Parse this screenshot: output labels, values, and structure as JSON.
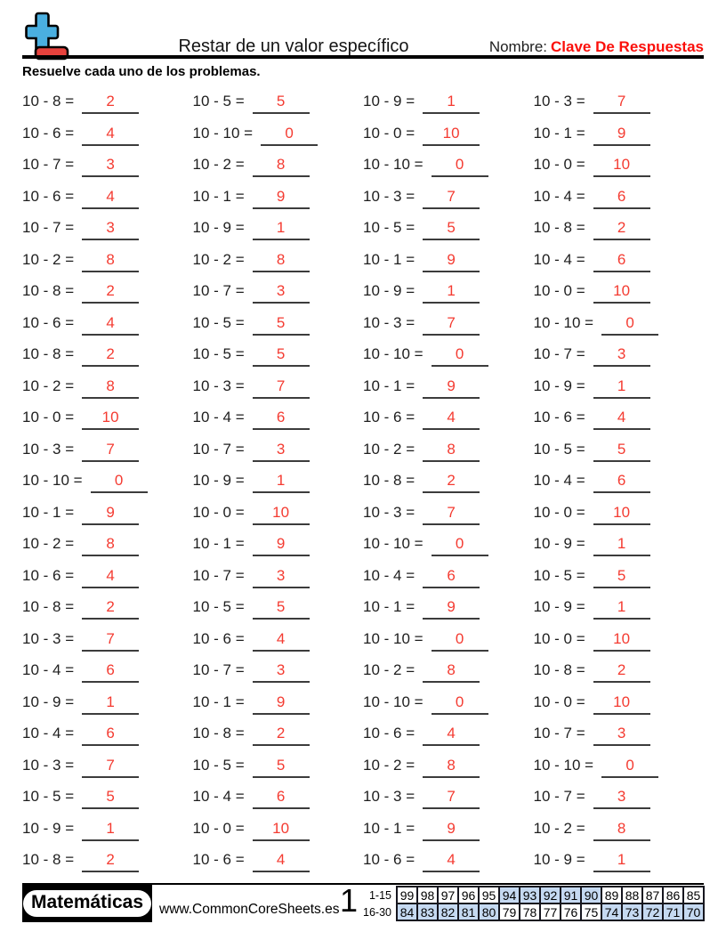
{
  "colors": {
    "answer_red": "#f43b31",
    "header_red": "#fb0f0a",
    "table_shade": "#c5d9f1",
    "logo_plus_blue": "#4aafe0",
    "logo_minus_red": "#e7423d"
  },
  "header": {
    "title": "Restar de un valor específico",
    "name_label": "Nombre:",
    "name_value": "Clave De Respuestas",
    "instruction": "Resuelve cada uno de los problemas."
  },
  "problems": {
    "columns": [
      [
        {
          "q": "10 - 8 =",
          "a": "2"
        },
        {
          "q": "10 - 6 =",
          "a": "4"
        },
        {
          "q": "10 - 7 =",
          "a": "3"
        },
        {
          "q": "10 - 6 =",
          "a": "4"
        },
        {
          "q": "10 - 7 =",
          "a": "3"
        },
        {
          "q": "10 - 2 =",
          "a": "8"
        },
        {
          "q": "10 - 8 =",
          "a": "2"
        },
        {
          "q": "10 - 6 =",
          "a": "4"
        },
        {
          "q": "10 - 8 =",
          "a": "2"
        },
        {
          "q": "10 - 2 =",
          "a": "8"
        },
        {
          "q": "10 - 0 =",
          "a": "10"
        },
        {
          "q": "10 - 3 =",
          "a": "7"
        },
        {
          "q": "10 - 10 =",
          "a": "0"
        },
        {
          "q": "10 - 1 =",
          "a": "9"
        },
        {
          "q": "10 - 2 =",
          "a": "8"
        },
        {
          "q": "10 - 6 =",
          "a": "4"
        },
        {
          "q": "10 - 8 =",
          "a": "2"
        },
        {
          "q": "10 - 3 =",
          "a": "7"
        },
        {
          "q": "10 - 4 =",
          "a": "6"
        },
        {
          "q": "10 - 9 =",
          "a": "1"
        },
        {
          "q": "10 - 4 =",
          "a": "6"
        },
        {
          "q": "10 - 3 =",
          "a": "7"
        },
        {
          "q": "10 - 5 =",
          "a": "5"
        },
        {
          "q": "10 - 9 =",
          "a": "1"
        },
        {
          "q": "10 - 8 =",
          "a": "2"
        }
      ],
      [
        {
          "q": "10 - 5 =",
          "a": "5"
        },
        {
          "q": "10 - 10 =",
          "a": "0"
        },
        {
          "q": "10 - 2 =",
          "a": "8"
        },
        {
          "q": "10 - 1 =",
          "a": "9"
        },
        {
          "q": "10 - 9 =",
          "a": "1"
        },
        {
          "q": "10 - 2 =",
          "a": "8"
        },
        {
          "q": "10 - 7 =",
          "a": "3"
        },
        {
          "q": "10 - 5 =",
          "a": "5"
        },
        {
          "q": "10 - 5 =",
          "a": "5"
        },
        {
          "q": "10 - 3 =",
          "a": "7"
        },
        {
          "q": "10 - 4 =",
          "a": "6"
        },
        {
          "q": "10 - 7 =",
          "a": "3"
        },
        {
          "q": "10 - 9 =",
          "a": "1"
        },
        {
          "q": "10 - 0 =",
          "a": "10"
        },
        {
          "q": "10 - 1 =",
          "a": "9"
        },
        {
          "q": "10 - 7 =",
          "a": "3"
        },
        {
          "q": "10 - 5 =",
          "a": "5"
        },
        {
          "q": "10 - 6 =",
          "a": "4"
        },
        {
          "q": "10 - 7 =",
          "a": "3"
        },
        {
          "q": "10 - 1 =",
          "a": "9"
        },
        {
          "q": "10 - 8 =",
          "a": "2"
        },
        {
          "q": "10 - 5 =",
          "a": "5"
        },
        {
          "q": "10 - 4 =",
          "a": "6"
        },
        {
          "q": "10 - 0 =",
          "a": "10"
        },
        {
          "q": "10 - 6 =",
          "a": "4"
        }
      ],
      [
        {
          "q": "10 - 9 =",
          "a": "1"
        },
        {
          "q": "10 - 0 =",
          "a": "10"
        },
        {
          "q": "10 - 10 =",
          "a": "0"
        },
        {
          "q": "10 - 3 =",
          "a": "7"
        },
        {
          "q": "10 - 5 =",
          "a": "5"
        },
        {
          "q": "10 - 1 =",
          "a": "9"
        },
        {
          "q": "10 - 9 =",
          "a": "1"
        },
        {
          "q": "10 - 3 =",
          "a": "7"
        },
        {
          "q": "10 - 10 =",
          "a": "0"
        },
        {
          "q": "10 - 1 =",
          "a": "9"
        },
        {
          "q": "10 - 6 =",
          "a": "4"
        },
        {
          "q": "10 - 2 =",
          "a": "8"
        },
        {
          "q": "10 - 8 =",
          "a": "2"
        },
        {
          "q": "10 - 3 =",
          "a": "7"
        },
        {
          "q": "10 - 10 =",
          "a": "0"
        },
        {
          "q": "10 - 4 =",
          "a": "6"
        },
        {
          "q": "10 - 1 =",
          "a": "9"
        },
        {
          "q": "10 - 10 =",
          "a": "0"
        },
        {
          "q": "10 - 2 =",
          "a": "8"
        },
        {
          "q": "10 - 10 =",
          "a": "0"
        },
        {
          "q": "10 - 6 =",
          "a": "4"
        },
        {
          "q": "10 - 2 =",
          "a": "8"
        },
        {
          "q": "10 - 3 =",
          "a": "7"
        },
        {
          "q": "10 - 1 =",
          "a": "9"
        },
        {
          "q": "10 - 6 =",
          "a": "4"
        }
      ],
      [
        {
          "q": "10 - 3 =",
          "a": "7"
        },
        {
          "q": "10 - 1 =",
          "a": "9"
        },
        {
          "q": "10 - 0 =",
          "a": "10"
        },
        {
          "q": "10 - 4 =",
          "a": "6"
        },
        {
          "q": "10 - 8 =",
          "a": "2"
        },
        {
          "q": "10 - 4 =",
          "a": "6"
        },
        {
          "q": "10 - 0 =",
          "a": "10"
        },
        {
          "q": "10 - 10 =",
          "a": "0"
        },
        {
          "q": "10 - 7 =",
          "a": "3"
        },
        {
          "q": "10 - 9 =",
          "a": "1"
        },
        {
          "q": "10 - 6 =",
          "a": "4"
        },
        {
          "q": "10 - 5 =",
          "a": "5"
        },
        {
          "q": "10 - 4 =",
          "a": "6"
        },
        {
          "q": "10 - 0 =",
          "a": "10"
        },
        {
          "q": "10 - 9 =",
          "a": "1"
        },
        {
          "q": "10 - 5 =",
          "a": "5"
        },
        {
          "q": "10 - 9 =",
          "a": "1"
        },
        {
          "q": "10 - 0 =",
          "a": "10"
        },
        {
          "q": "10 - 8 =",
          "a": "2"
        },
        {
          "q": "10 - 0 =",
          "a": "10"
        },
        {
          "q": "10 - 7 =",
          "a": "3"
        },
        {
          "q": "10 - 10 =",
          "a": "0"
        },
        {
          "q": "10 - 7 =",
          "a": "3"
        },
        {
          "q": "10 - 2 =",
          "a": "8"
        },
        {
          "q": "10 - 9 =",
          "a": "1"
        }
      ]
    ]
  },
  "footer": {
    "brand": "Matemáticas",
    "website": "www.CommonCoreSheets.es",
    "page_number": "1",
    "score_table": {
      "rows": [
        {
          "label": "1-15",
          "values": [
            "99",
            "98",
            "97",
            "96",
            "95",
            "94",
            "93",
            "92",
            "91",
            "90",
            "89",
            "88",
            "87",
            "86",
            "85"
          ],
          "shaded": [
            false,
            false,
            false,
            false,
            false,
            true,
            true,
            true,
            true,
            true,
            false,
            false,
            false,
            false,
            false
          ]
        },
        {
          "label": "16-30",
          "values": [
            "84",
            "83",
            "82",
            "81",
            "80",
            "79",
            "78",
            "77",
            "76",
            "75",
            "74",
            "73",
            "72",
            "71",
            "70"
          ],
          "shaded": [
            true,
            true,
            true,
            true,
            true,
            false,
            false,
            false,
            false,
            false,
            true,
            true,
            true,
            true,
            true
          ]
        }
      ]
    }
  }
}
